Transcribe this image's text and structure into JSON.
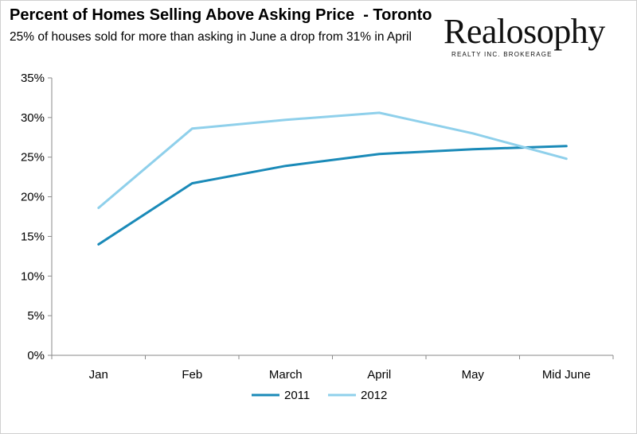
{
  "header": {
    "title": "Percent of Homes Selling Above Asking Price  - Toronto",
    "subtitle": "25% of houses sold for more than asking in June a drop from 31% in April"
  },
  "logo": {
    "name": "Realosophy",
    "tagline": "REALTY INC. BROKERAGE"
  },
  "chart_data": {
    "type": "line",
    "title": "Percent of Homes Selling Above Asking Price  - Toronto",
    "subtitle": "25% of houses sold for more than asking in June a drop from 31% in April",
    "categories": [
      "Jan",
      "Feb",
      "March",
      "April",
      "May",
      "Mid June"
    ],
    "series": [
      {
        "name": "2011",
        "color": "#1a8ab8",
        "values": [
          14.0,
          21.7,
          23.9,
          25.4,
          26.0,
          26.4
        ]
      },
      {
        "name": "2012",
        "color": "#8fd0eb",
        "values": [
          18.6,
          28.6,
          29.7,
          30.6,
          28.0,
          24.8
        ]
      }
    ],
    "ylim": [
      0,
      35
    ],
    "yticks": [
      0,
      5,
      10,
      15,
      20,
      25,
      30,
      35
    ],
    "ytick_labels": [
      "0%",
      "5%",
      "10%",
      "15%",
      "20%",
      "25%",
      "30%",
      "35%"
    ],
    "xlabel": "",
    "ylabel": "",
    "grid": false,
    "legend": "bottom-center"
  }
}
